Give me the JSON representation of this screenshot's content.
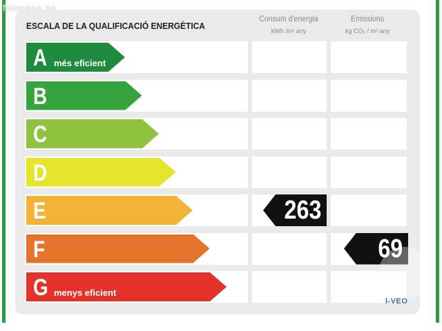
{
  "watermark": "fotocasa.es",
  "title": "ESCALA DE LA QUALIFICACIÓ ENERGÈTICA",
  "columns": {
    "energy": {
      "header": "Consum d'energia",
      "unit": "kWh /m² any"
    },
    "emissions": {
      "header": "Emissions",
      "unit": "kg CO₂ / m² any"
    }
  },
  "rows": [
    {
      "letter": "A",
      "sub": "més eficient",
      "color": "#1f8b3e"
    },
    {
      "letter": "B",
      "sub": "",
      "color": "#35a43c"
    },
    {
      "letter": "C",
      "sub": "",
      "color": "#8fc33f"
    },
    {
      "letter": "D",
      "sub": "",
      "color": "#e5e52c"
    },
    {
      "letter": "E",
      "sub": "",
      "color": "#f2b336"
    },
    {
      "letter": "F",
      "sub": "",
      "color": "#e4742b"
    },
    {
      "letter": "G",
      "sub": "menys eficient",
      "color": "#e2322a"
    }
  ],
  "rating": {
    "energy": {
      "value": "263",
      "row": "E"
    },
    "emissions": {
      "value": "69",
      "row": "F"
    }
  },
  "logo": "I-VEO"
}
